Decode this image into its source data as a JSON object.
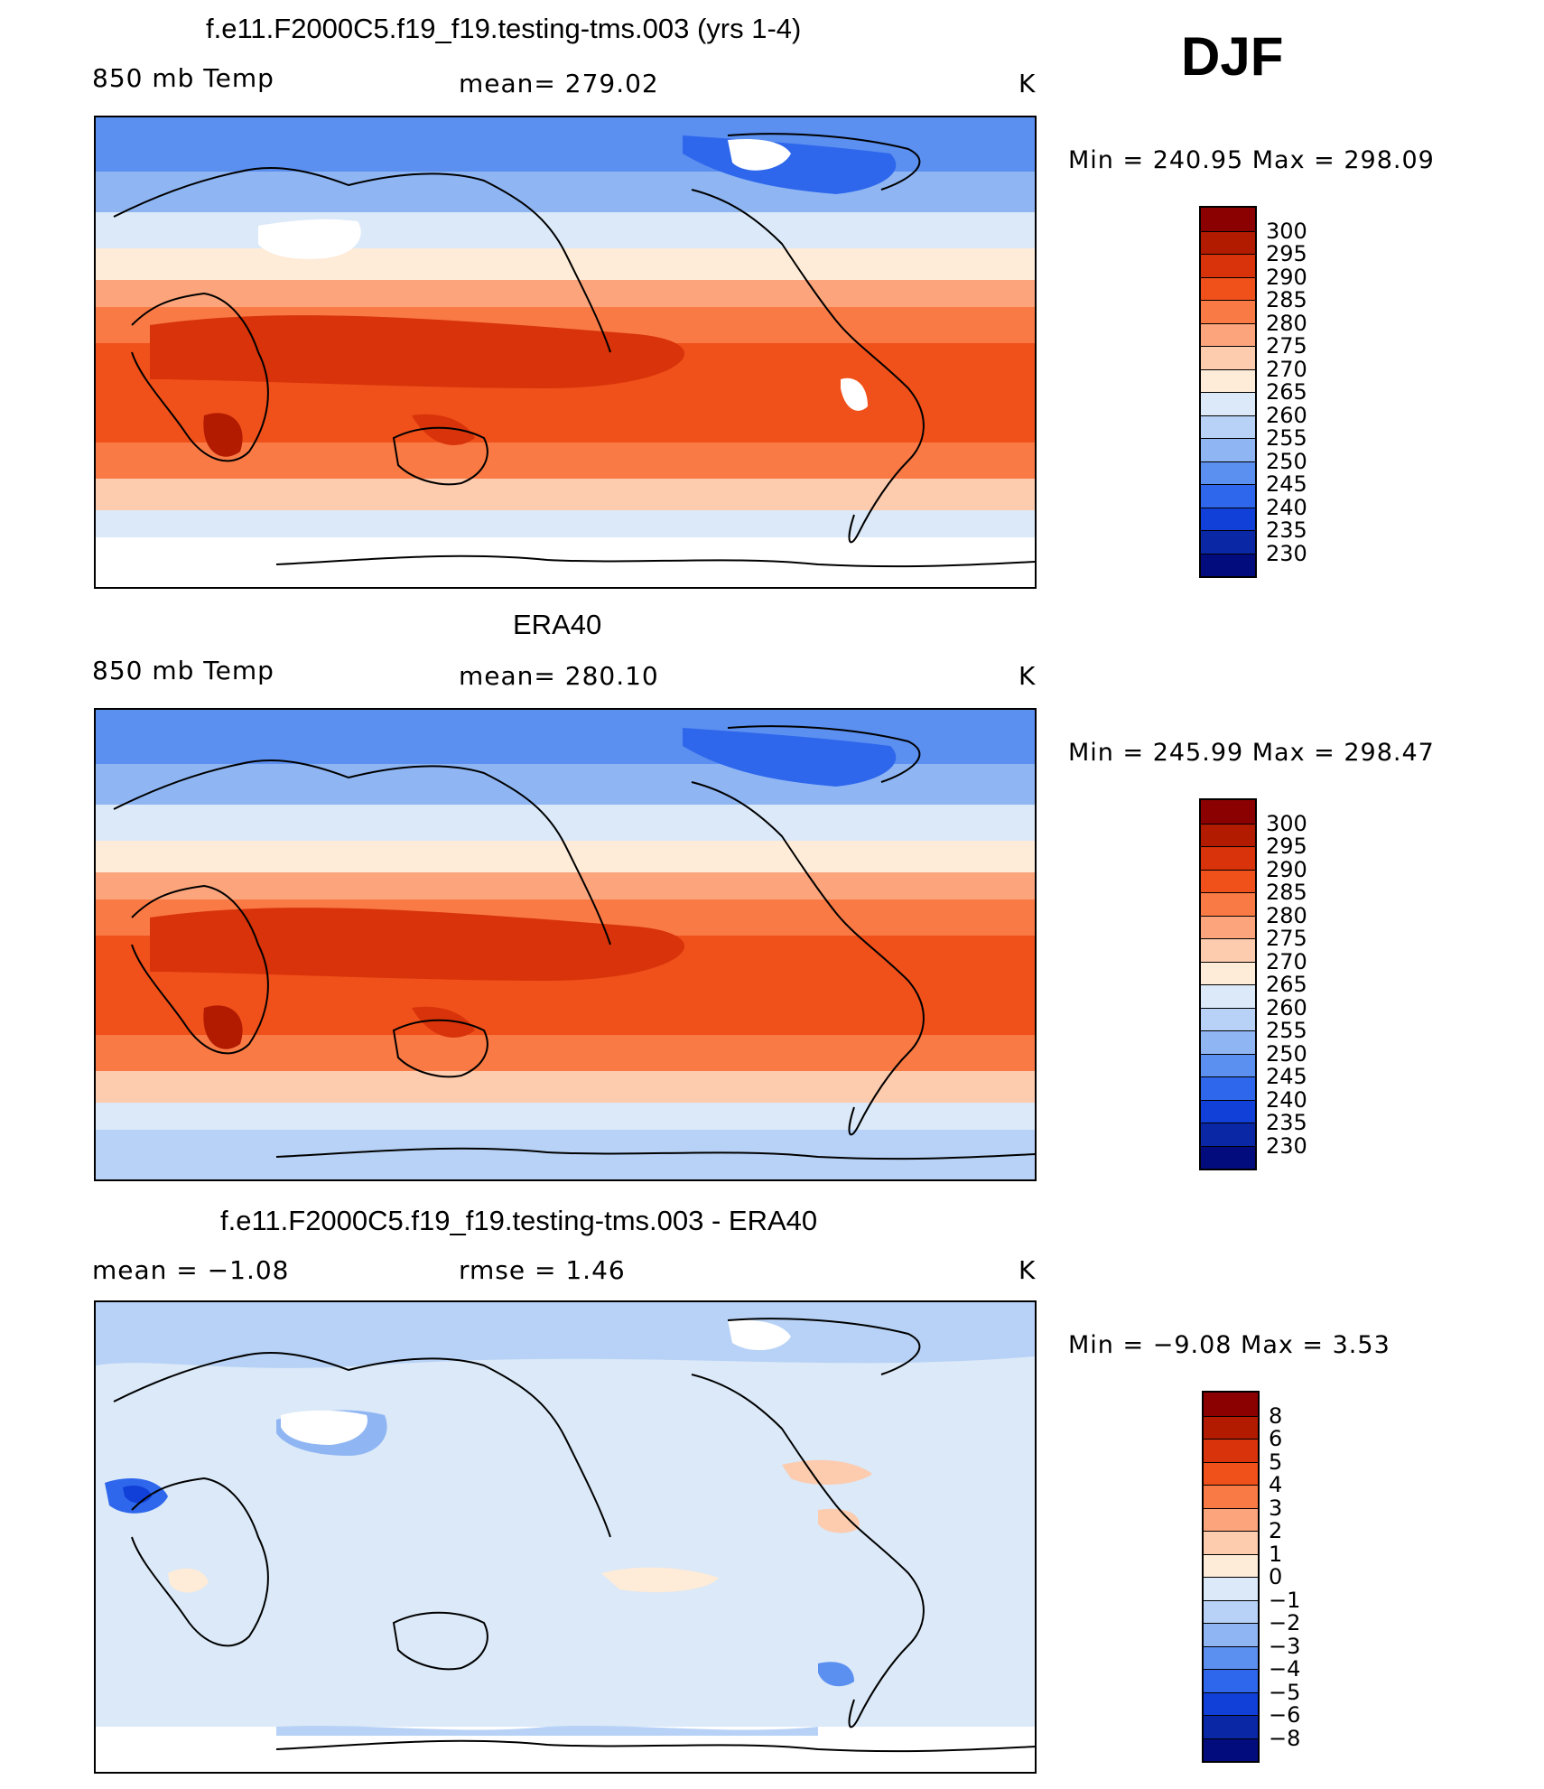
{
  "season": "DJF",
  "panels": [
    {
      "title": "f.e11.F2000C5.f19_f19.testing-tms.003 (yrs 1-4)",
      "left": "850 mb Temp",
      "center": "mean=  279.02",
      "units": "K",
      "minmax": "Min  =  240.95  Max  =  298.09",
      "colorbar_labels": [
        "300",
        "295",
        "290",
        "285",
        "280",
        "275",
        "270",
        "265",
        "260",
        "255",
        "250",
        "245",
        "240",
        "235",
        "230"
      ]
    },
    {
      "title": "ERA40",
      "left": "850 mb Temp",
      "center": "mean=  280.10",
      "units": "K",
      "minmax": "Min  =  245.99  Max  =  298.47",
      "colorbar_labels": [
        "300",
        "295",
        "290",
        "285",
        "280",
        "275",
        "270",
        "265",
        "260",
        "255",
        "250",
        "245",
        "240",
        "235",
        "230"
      ]
    },
    {
      "title": "f.e11.F2000C5.f19_f19.testing-tms.003 - ERA40",
      "left": "mean  =    −1.08",
      "center": "rmse  =     1.46",
      "units": "K",
      "minmax": "Min  =    −9.08  Max  =     3.53",
      "colorbar_labels": [
        "8",
        "6",
        "5",
        "4",
        "3",
        "2",
        "1",
        "0",
        "−1",
        "−2",
        "−3",
        "−4",
        "−5",
        "−6",
        "−8"
      ]
    }
  ],
  "colors": {
    "ramp": [
      "#8b0000",
      "#b31b00",
      "#d8330a",
      "#f0501a",
      "#f97a45",
      "#fca57c",
      "#fdcbae",
      "#feebd8",
      "#dbe9f8",
      "#b7d2f6",
      "#8fb6f3",
      "#5b8ff0",
      "#2e67ec",
      "#1140d8",
      "#0a27a6",
      "#020c7d"
    ]
  }
}
